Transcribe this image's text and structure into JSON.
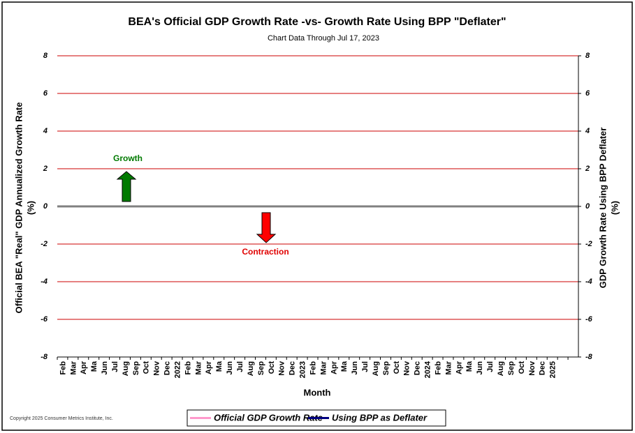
{
  "chart_data": {
    "type": "line",
    "title": "BEA's Official GDP Growth Rate -vs- Growth Rate Using BPP \"Deflater\"",
    "subtitle": "Chart Data Through Jul 17, 2023",
    "y_label": [
      "Official BEA \"Real\" GDP Annualized Growth Rate",
      "(%)"
    ],
    "y2_label": [
      "GDP Growth Rate Using BPP Deflater",
      "(%)"
    ],
    "x_label": "Month",
    "annotations": [
      "Growth",
      "Contraction"
    ],
    "copyright": "Copyright 2025 Consumer Metrics Institute, Inc.",
    "categories": [
      "Feb",
      "Mar",
      "Apr",
      "Ma",
      "Jun",
      "Jul",
      "Aug",
      "Sep",
      "Oct",
      "Nov",
      "Dec",
      "2022",
      "Feb",
      "Mar",
      "Apr",
      "Ma",
      "Jun",
      "Jul",
      "Aug",
      "Sep",
      "Oct",
      "Nov",
      "Dec",
      "2023",
      "Feb",
      "Mar",
      "Apr",
      "Ma",
      "Jun",
      "Jul",
      "Aug",
      "Sep",
      "Oct",
      "Nov",
      "Dec",
      "2024",
      "Feb",
      "Mar",
      "Apr",
      "Ma",
      "Jun",
      "Jul",
      "Aug",
      "Sep",
      "Oct",
      "Nov",
      "Dec",
      "2025",
      null,
      null
    ],
    "series": [
      {
        "name": "Official GDP Growth Rate",
        "color": "#ff99cc",
        "values": [
          null,
          null,
          null,
          null,
          null,
          null,
          null,
          null,
          null,
          null,
          null,
          null,
          null,
          null,
          null,
          null,
          null,
          null,
          null,
          null,
          null,
          null,
          null,
          null,
          null,
          null,
          null,
          null,
          null,
          null,
          null,
          null,
          null,
          null,
          null,
          null,
          null,
          null,
          null,
          null,
          null,
          null,
          null,
          null,
          null,
          null,
          null,
          null,
          null,
          null
        ]
      },
      {
        "name": "Using BPP as Deflater",
        "color": "#000080",
        "axis": "y2",
        "values": [
          null,
          null,
          null,
          null,
          null,
          null,
          null,
          null,
          null,
          null,
          null,
          null,
          null,
          null,
          null,
          null,
          null,
          null,
          null,
          null,
          null,
          null,
          null,
          null,
          null,
          null,
          null,
          null,
          null,
          null,
          null,
          null,
          null,
          null,
          null,
          null,
          null,
          null,
          null,
          null,
          null,
          null,
          null,
          null,
          null,
          null,
          null,
          null,
          null,
          null
        ]
      }
    ],
    "ylim": [
      -8,
      8
    ],
    "yticks": [
      -8,
      -6,
      -4,
      -2,
      0,
      2,
      4,
      6,
      8
    ],
    "y2lim": [
      -8,
      8
    ],
    "y2ticks": [
      -8,
      -6,
      -4,
      -2,
      0,
      2,
      4,
      6,
      8
    ],
    "grid": true,
    "grid_color": "#cc0000",
    "legend": "bottom"
  }
}
